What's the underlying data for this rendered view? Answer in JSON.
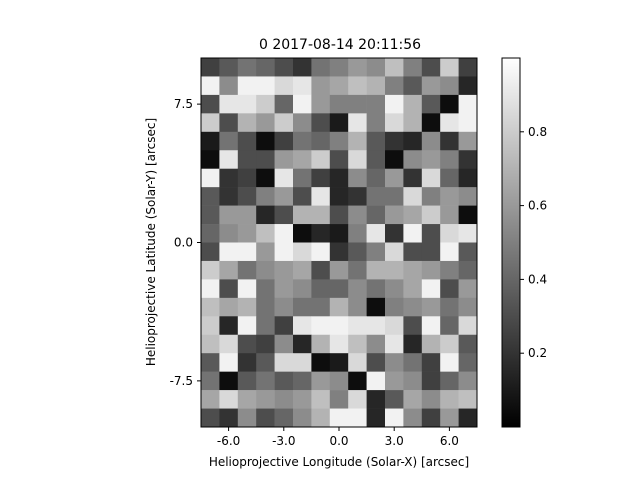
{
  "chart_data": {
    "type": "heatmap",
    "title": "0  2017-08-14 20:11:56",
    "xlabel": "Helioprojective Longitude (Solar-X) [arcsec]",
    "ylabel": "Helioprojective Latitude (Solar-Y) [arcsec]",
    "colormap": "gray",
    "colorbar": {
      "range": [
        0.0,
        1.0
      ],
      "ticks": [
        "0.2",
        "0.4",
        "0.6",
        "0.8"
      ]
    },
    "xlim": [
      -7.5,
      7.5
    ],
    "ylim": [
      -10.0,
      10.0
    ],
    "x_ticks": [
      "-6.0",
      "-3.0",
      "0.0",
      "3.0",
      "6.0"
    ],
    "y_ticks": [
      "7.5",
      "0.0",
      "-7.5"
    ],
    "grid": false,
    "rows": 20,
    "cols": 15,
    "values": [
      [
        0.25,
        0.35,
        0.45,
        0.4,
        0.3,
        0.2,
        0.45,
        0.5,
        0.6,
        0.55,
        0.75,
        0.5,
        0.3,
        0.8,
        0.25
      ],
      [
        0.95,
        0.55,
        0.95,
        0.95,
        0.85,
        0.9,
        0.6,
        0.65,
        0.75,
        0.7,
        0.5,
        0.35,
        0.6,
        0.55,
        0.15
      ],
      [
        0.3,
        0.9,
        0.9,
        0.8,
        0.4,
        0.95,
        0.6,
        0.5,
        0.5,
        0.5,
        0.95,
        0.7,
        0.35,
        0.05,
        0.95
      ],
      [
        0.8,
        0.3,
        0.7,
        0.6,
        0.8,
        0.55,
        0.3,
        0.1,
        0.9,
        0.5,
        0.85,
        0.7,
        0.05,
        0.9,
        0.95
      ],
      [
        0.1,
        0.45,
        0.3,
        0.05,
        0.25,
        0.45,
        0.4,
        0.5,
        0.7,
        0.35,
        0.2,
        0.15,
        0.55,
        0.2,
        0.6
      ],
      [
        0.05,
        0.9,
        0.3,
        0.3,
        0.6,
        0.65,
        0.8,
        0.3,
        0.85,
        0.35,
        0.05,
        0.55,
        0.6,
        0.5,
        0.2
      ],
      [
        0.95,
        0.2,
        0.25,
        0.05,
        0.9,
        0.45,
        0.25,
        0.15,
        0.55,
        0.4,
        0.6,
        0.2,
        0.85,
        0.4,
        0.15
      ],
      [
        0.35,
        0.2,
        0.3,
        0.5,
        0.6,
        0.3,
        0.9,
        0.15,
        0.2,
        0.45,
        0.45,
        0.85,
        0.5,
        0.6,
        0.55
      ],
      [
        0.35,
        0.6,
        0.6,
        0.15,
        0.3,
        0.7,
        0.7,
        0.3,
        0.55,
        0.4,
        0.6,
        0.65,
        0.8,
        0.6,
        0.05
      ],
      [
        0.4,
        0.55,
        0.6,
        0.75,
        0.95,
        0.05,
        0.15,
        0.1,
        0.5,
        0.9,
        0.2,
        0.95,
        0.3,
        0.85,
        0.9
      ],
      [
        0.3,
        0.95,
        0.95,
        0.6,
        0.95,
        0.85,
        0.95,
        0.2,
        0.35,
        0.5,
        0.85,
        0.3,
        0.3,
        0.95,
        0.35
      ],
      [
        0.8,
        0.65,
        0.45,
        0.55,
        0.6,
        0.65,
        0.3,
        0.6,
        0.45,
        0.7,
        0.7,
        0.65,
        0.6,
        0.5,
        0.4
      ],
      [
        0.95,
        0.3,
        0.95,
        0.45,
        0.6,
        0.55,
        0.4,
        0.4,
        0.55,
        0.45,
        0.55,
        0.65,
        0.95,
        0.3,
        0.6
      ],
      [
        0.75,
        0.65,
        0.7,
        0.45,
        0.55,
        0.45,
        0.45,
        0.7,
        0.55,
        0.05,
        0.5,
        0.55,
        0.6,
        0.45,
        0.55
      ],
      [
        0.8,
        0.15,
        0.95,
        0.45,
        0.25,
        0.9,
        0.95,
        0.95,
        0.9,
        0.9,
        0.85,
        0.3,
        0.95,
        0.4,
        0.85
      ],
      [
        0.75,
        0.85,
        0.3,
        0.25,
        0.55,
        0.15,
        0.7,
        0.9,
        0.75,
        0.55,
        0.9,
        0.15,
        0.7,
        0.8,
        0.35
      ],
      [
        0.35,
        0.95,
        0.2,
        0.35,
        0.85,
        0.85,
        0.05,
        0.1,
        0.85,
        0.3,
        0.55,
        0.45,
        0.25,
        0.95,
        0.4
      ],
      [
        0.45,
        0.05,
        0.35,
        0.45,
        0.35,
        0.4,
        0.6,
        0.55,
        0.05,
        0.95,
        0.6,
        0.55,
        0.25,
        0.4,
        0.55
      ],
      [
        0.65,
        0.85,
        0.65,
        0.6,
        0.55,
        0.6,
        0.75,
        0.5,
        0.85,
        0.15,
        0.35,
        0.65,
        0.55,
        0.7,
        0.75
      ],
      [
        0.3,
        0.2,
        0.55,
        0.3,
        0.4,
        0.55,
        0.7,
        0.95,
        0.95,
        0.15,
        0.95,
        0.55,
        0.25,
        0.6,
        0.15
      ]
    ]
  }
}
